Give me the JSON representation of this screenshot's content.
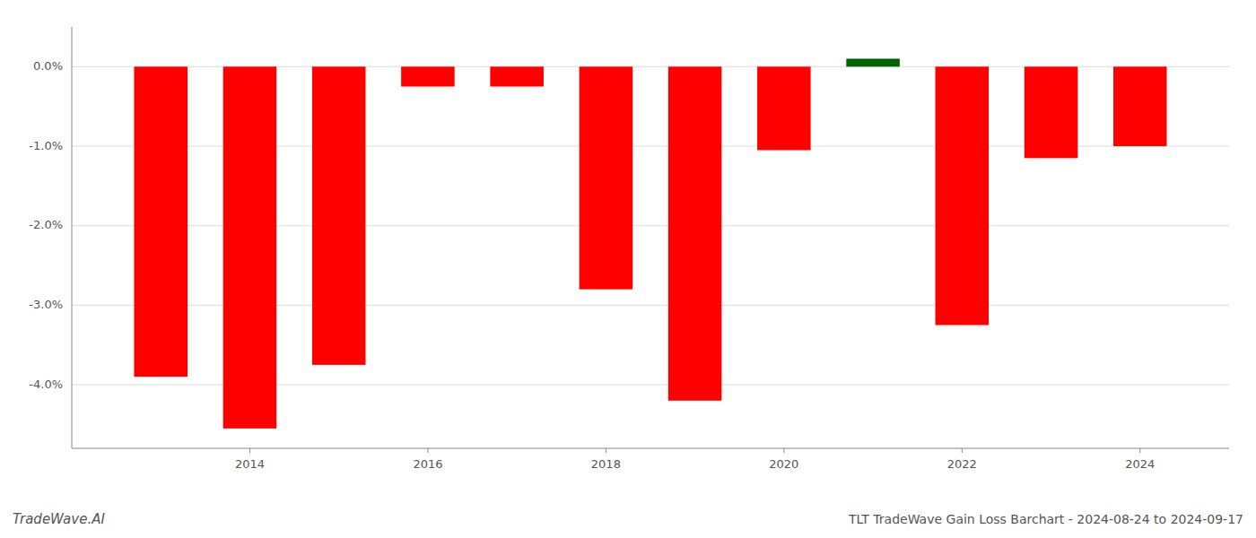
{
  "chart_data": {
    "type": "bar",
    "title": "TLT TradeWave Gain Loss Barchart - 2024-08-24 to 2024-09-17",
    "annotation": "TradeWave.AI",
    "x": [
      2013,
      2014,
      2015,
      2016,
      2017,
      2018,
      2019,
      2020,
      2021,
      2022,
      2023,
      2024
    ],
    "values": [
      -0.039,
      -0.0455,
      -0.0375,
      -0.0025,
      -0.0025,
      -0.028,
      -0.042,
      -0.0105,
      0.001,
      -0.0325,
      -0.0115,
      -0.01
    ],
    "colors": [
      "#ff0000",
      "#ff0000",
      "#ff0000",
      "#ff0000",
      "#ff0000",
      "#ff0000",
      "#ff0000",
      "#ff0000",
      "#006400",
      "#ff0000",
      "#ff0000",
      "#ff0000"
    ],
    "xlim": [
      2012,
      2025
    ],
    "xticks": [
      2014,
      2016,
      2018,
      2020,
      2022,
      2024
    ],
    "ylim": [
      -0.048,
      0.005
    ],
    "yticks": [
      {
        "value": 0.0,
        "label": "0.0%"
      },
      {
        "value": -0.01,
        "label": "-1.0%"
      },
      {
        "value": -0.02,
        "label": "-2.0%"
      },
      {
        "value": -0.03,
        "label": "-3.0%"
      },
      {
        "value": -0.04,
        "label": "-4.0%"
      }
    ],
    "grid": true
  }
}
